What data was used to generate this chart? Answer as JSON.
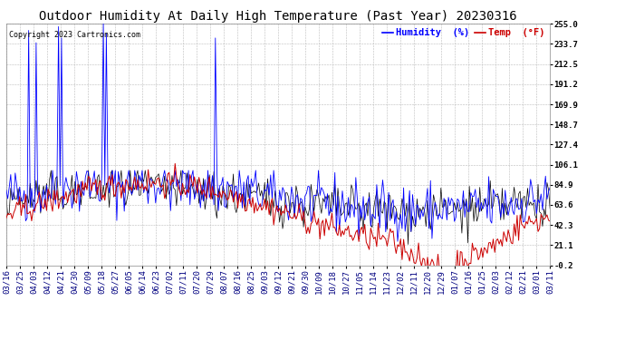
{
  "title": "Outdoor Humidity At Daily High Temperature (Past Year) 20230316",
  "copyright": "Copyright 2023 Cartronics.com",
  "legend_humidity": "Humidity  (%)",
  "legend_temp": "Temp  (°F)",
  "ylabel_right_ticks": [
    255.0,
    233.7,
    212.5,
    191.2,
    169.9,
    148.7,
    127.4,
    106.1,
    84.9,
    63.6,
    42.3,
    21.1,
    -0.2
  ],
  "ylim": [
    -0.2,
    255.0
  ],
  "background_color": "#ffffff",
  "grid_color": "#bbbbbb",
  "humidity_color": "#0000ff",
  "temp_color": "#cc0000",
  "black_color": "#000000",
  "title_color": "#000000",
  "copyright_color": "#000000",
  "x_dates": [
    "03/16",
    "03/25",
    "04/03",
    "04/12",
    "04/21",
    "04/30",
    "05/09",
    "05/18",
    "05/27",
    "06/05",
    "06/14",
    "06/23",
    "07/02",
    "07/11",
    "07/20",
    "07/29",
    "08/07",
    "08/16",
    "08/25",
    "09/03",
    "09/12",
    "09/21",
    "09/30",
    "10/09",
    "10/18",
    "10/27",
    "11/05",
    "11/14",
    "11/23",
    "12/02",
    "12/11",
    "12/20",
    "12/29",
    "01/07",
    "01/16",
    "01/25",
    "02/03",
    "02/12",
    "02/21",
    "03/01",
    "03/11"
  ],
  "title_fontsize": 10,
  "tick_fontsize": 6.5,
  "copyright_fontsize": 6,
  "legend_fontsize": 7.5,
  "n_points": 365,
  "spike_positions": [
    15,
    20,
    35,
    37,
    65,
    67,
    140
  ],
  "spike_values": [
    248,
    235,
    252,
    240,
    255,
    245,
    240
  ]
}
